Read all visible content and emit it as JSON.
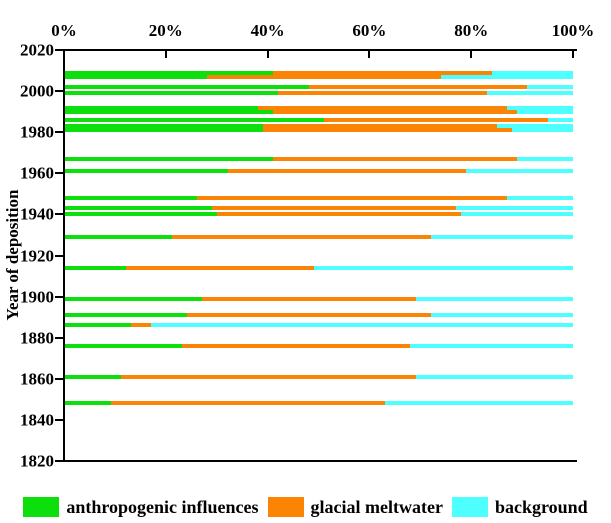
{
  "chart_data": {
    "type": "bar",
    "orientation": "horizontal",
    "stacked": true,
    "title": "",
    "xlabel": "",
    "ylabel": "Year of deposition",
    "x_axis": {
      "min": 0,
      "max": 100,
      "unit": "%",
      "position": "top",
      "tick_labels": [
        "0%",
        "20%",
        "40%",
        "60%",
        "80%",
        "100%"
      ],
      "tick_values": [
        0,
        20,
        40,
        60,
        80,
        100
      ]
    },
    "y_axis": {
      "min": 1820,
      "max": 2020,
      "tick_step": 20,
      "tick_labels": [
        "2020",
        "2000",
        "1980",
        "1960",
        "1940",
        "1920",
        "1900",
        "1880",
        "1860",
        "1840",
        "1820"
      ],
      "tick_values": [
        2020,
        2000,
        1980,
        1960,
        1940,
        1920,
        1900,
        1880,
        1860,
        1840,
        1820
      ]
    },
    "grid": false,
    "legend_position": "bottom",
    "series": [
      {
        "name": "anthropogenic influences",
        "color": "#0cdf0c"
      },
      {
        "name": "glacial meltwater",
        "color": "#fb8405"
      },
      {
        "name": "background",
        "color": "#4dffff"
      }
    ],
    "bars": [
      {
        "year": 2009,
        "values": [
          41,
          43,
          16
        ]
      },
      {
        "year": 2007,
        "values": [
          28,
          46,
          26
        ]
      },
      {
        "year": 2002,
        "values": [
          48,
          43,
          9
        ]
      },
      {
        "year": 1999,
        "values": [
          42,
          41,
          17
        ]
      },
      {
        "year": 1992,
        "values": [
          38,
          49,
          13
        ]
      },
      {
        "year": 1990,
        "values": [
          41,
          48,
          11
        ]
      },
      {
        "year": 1986,
        "values": [
          51,
          44,
          5
        ]
      },
      {
        "year": 1983,
        "values": [
          39,
          46,
          15
        ]
      },
      {
        "year": 1981,
        "values": [
          39,
          49,
          12
        ]
      },
      {
        "year": 1967,
        "values": [
          41,
          48,
          11
        ]
      },
      {
        "year": 1961,
        "values": [
          32,
          47,
          21
        ]
      },
      {
        "year": 1948,
        "values": [
          26,
          61,
          13
        ]
      },
      {
        "year": 1943,
        "values": [
          29,
          48,
          23
        ]
      },
      {
        "year": 1940,
        "values": [
          30,
          48,
          22
        ]
      },
      {
        "year": 1929,
        "values": [
          21,
          51,
          28
        ]
      },
      {
        "year": 1914,
        "values": [
          12,
          37,
          51
        ]
      },
      {
        "year": 1899,
        "values": [
          27,
          42,
          31
        ]
      },
      {
        "year": 1891,
        "values": [
          24,
          48,
          28
        ]
      },
      {
        "year": 1886,
        "values": [
          13,
          4,
          83
        ]
      },
      {
        "year": 1876,
        "values": [
          23,
          45,
          32
        ]
      },
      {
        "year": 1861,
        "values": [
          11,
          58,
          31
        ]
      },
      {
        "year": 1848,
        "values": [
          9,
          54,
          37
        ]
      }
    ]
  }
}
